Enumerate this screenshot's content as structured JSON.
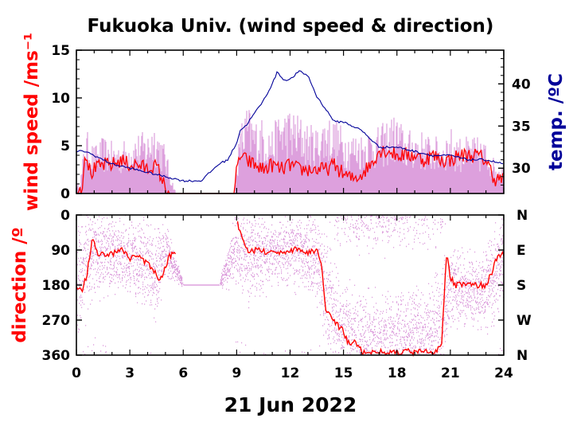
{
  "chart_data": {
    "title": "Fukuoka Univ. (wind speed & direction)",
    "xlabel": "21 Jun 2022",
    "xlim": [
      0,
      24
    ],
    "xticks": [
      0,
      3,
      6,
      9,
      12,
      15,
      18,
      21,
      24
    ],
    "colors": {
      "wind_speed_max": "#dda0dd",
      "wind_speed_mean": "#ff0000",
      "temperature": "#000099",
      "direction_raw": "#dda0dd",
      "direction_mean": "#ff0000"
    },
    "panels": [
      {
        "type": "line",
        "ylabel": "wind speed /ms⁻¹",
        "ylim": [
          0,
          15
        ],
        "yticks": [
          0,
          5,
          10,
          15
        ],
        "y2label": "temp. /ºC",
        "y2lim": [
          27,
          44
        ],
        "y2ticks": [
          30,
          35,
          40
        ],
        "series": [
          {
            "axis": "left",
            "style": "spiky-area",
            "x": [
              0,
              0.3,
              0.5,
              1,
              1.5,
              2,
              2.5,
              3,
              3.5,
              4,
              4.3,
              4.6,
              5,
              5.3,
              5.6,
              6,
              7,
              8,
              8.5,
              8.9,
              9,
              9.3,
              9.6,
              10,
              10.5,
              11,
              11.5,
              12,
              12.5,
              13,
              13.5,
              14,
              14.5,
              15,
              15.5,
              16,
              16.5,
              17,
              17.5,
              18,
              18.5,
              19,
              19.5,
              20,
              20.5,
              21,
              21.5,
              22,
              22.5,
              23,
              23.5,
              24
            ],
            "values": [
              0.5,
              2.5,
              7,
              5,
              6,
              5.5,
              5.5,
              6,
              6.5,
              6.5,
              8,
              7,
              5,
              2,
              0,
              0,
              0,
              0,
              0,
              0,
              4,
              8,
              9.5,
              8,
              8,
              7,
              9,
              9,
              8.5,
              7.5,
              7,
              8.5,
              8,
              7,
              6.5,
              6.5,
              7,
              7,
              8,
              8.5,
              6.5,
              7,
              6.5,
              6,
              6,
              7,
              6,
              6,
              6,
              5.5,
              3.5,
              3
            ]
          },
          {
            "axis": "left",
            "style": "line",
            "x": [
              0,
              0.3,
              0.5,
              0.8,
              1,
              1.5,
              2,
              2.5,
              3,
              3.5,
              4,
              4.3,
              4.6,
              5,
              5.3,
              6,
              7,
              8,
              8.9,
              9,
              9.2,
              9.5,
              10,
              10.5,
              11,
              11.5,
              12,
              12.5,
              13,
              13.5,
              14,
              14.5,
              15,
              15.5,
              16,
              16.5,
              17,
              17.5,
              18,
              18.5,
              19,
              19.5,
              20,
              20.5,
              21,
              21.5,
              22,
              22.5,
              23,
              23.5,
              24
            ],
            "values": [
              0.3,
              0.5,
              4.5,
              2,
              2.5,
              3,
              3,
              3.5,
              3,
              3,
              2.5,
              3,
              2.5,
              0.5,
              0,
              0,
              0,
              0,
              0,
              2.5,
              4,
              3.5,
              3,
              2.5,
              3,
              2.5,
              3,
              2.5,
              2.5,
              2.5,
              2.5,
              3,
              2,
              1.5,
              2,
              3,
              4.5,
              4.5,
              4,
              4,
              4,
              3.5,
              4,
              3.5,
              3.5,
              4,
              4,
              4,
              3.5,
              1.5,
              1.5
            ]
          },
          {
            "axis": "right",
            "style": "line",
            "x": [
              0,
              0.5,
              1,
              1.5,
              2,
              3,
              4,
              5,
              6,
              6.5,
              7,
              7.5,
              8,
              8.5,
              9,
              9.2,
              9.5,
              10,
              10.5,
              11,
              11.3,
              11.6,
              12,
              12.5,
              13,
              13.5,
              14,
              14.5,
              15,
              15.5,
              16,
              16.5,
              17,
              17.5,
              18,
              19,
              20,
              21,
              22,
              23,
              24
            ],
            "values": [
              32,
              32,
              31.5,
              31,
              30.5,
              30,
              29.5,
              29,
              28.5,
              28.5,
              28.5,
              29.5,
              30.5,
              31,
              33,
              34.5,
              35,
              36.5,
              38,
              40,
              41.5,
              40.5,
              40.5,
              41.5,
              41,
              38.5,
              37,
              35.5,
              35.5,
              35,
              34.5,
              33.5,
              32.5,
              32.5,
              32.5,
              32,
              31.5,
              31.5,
              31,
              31,
              30.5
            ]
          }
        ]
      },
      {
        "type": "scatter",
        "ylabel": "direction /º",
        "ylim": [
          0,
          360
        ],
        "yticks": [
          0,
          90,
          180,
          270,
          360
        ],
        "y2ticks": [
          "N",
          "E",
          "S",
          "W",
          "N"
        ],
        "series": [
          {
            "style": "scatter-band",
            "x": [
              0,
              0.5,
              1,
              2,
              3,
              4,
              4.5,
              5,
              6,
              7,
              8,
              9,
              9.5,
              10,
              11,
              12,
              13,
              13.5,
              14,
              14.5,
              15,
              16,
              17,
              18,
              19,
              20,
              20.5,
              21,
              21.5,
              22,
              23,
              23.5,
              24
            ],
            "values": [
              150,
              120,
              90,
              100,
              110,
              120,
              150,
              90,
              180,
              180,
              180,
              80,
              100,
              110,
              95,
              90,
              95,
              110,
              200,
              280,
              300,
              320,
              330,
              320,
              310,
              300,
              280,
              180,
              190,
              200,
              190,
              140,
              100
            ],
            "spread": [
              120,
              130,
              110,
              90,
              90,
              100,
              110,
              60,
              5,
              5,
              5,
              90,
              100,
              100,
              80,
              80,
              90,
              110,
              130,
              130,
              120,
              110,
              100,
              110,
              110,
              120,
              130,
              90,
              90,
              90,
              100,
              110,
              110
            ]
          },
          {
            "style": "line",
            "x": [
              0,
              0.3,
              0.6,
              0.9,
              1.2,
              1.5,
              2,
              2.5,
              3,
              3.5,
              4,
              4.3,
              4.6,
              4.9,
              5.2,
              5.5,
              6,
              9,
              9.3,
              9.6,
              10,
              10.5,
              11,
              11.5,
              12,
              12.5,
              13,
              13.5,
              13.8,
              14,
              14.3,
              14.6,
              15,
              15.3,
              15.6,
              16,
              16.5,
              17,
              17.5,
              18,
              18.5,
              19,
              19.5,
              20,
              20.5,
              20.8,
              21,
              21.3,
              21.6,
              22,
              22.5,
              23,
              23.3,
              23.6,
              24
            ],
            "values": [
              180,
              200,
              150,
              60,
              100,
              100,
              100,
              90,
              110,
              110,
              125,
              140,
              165,
              150,
              105,
              95,
              90,
              10,
              60,
              90,
              90,
              95,
              90,
              95,
              90,
              90,
              95,
              90,
              140,
              240,
              260,
              280,
              300,
              330,
              320,
              350,
              355,
              350,
              355,
              355,
              350,
              355,
              350,
              350,
              340,
              90,
              160,
              180,
              180,
              175,
              180,
              180,
              150,
              110,
              100
            ]
          }
        ]
      }
    ]
  }
}
